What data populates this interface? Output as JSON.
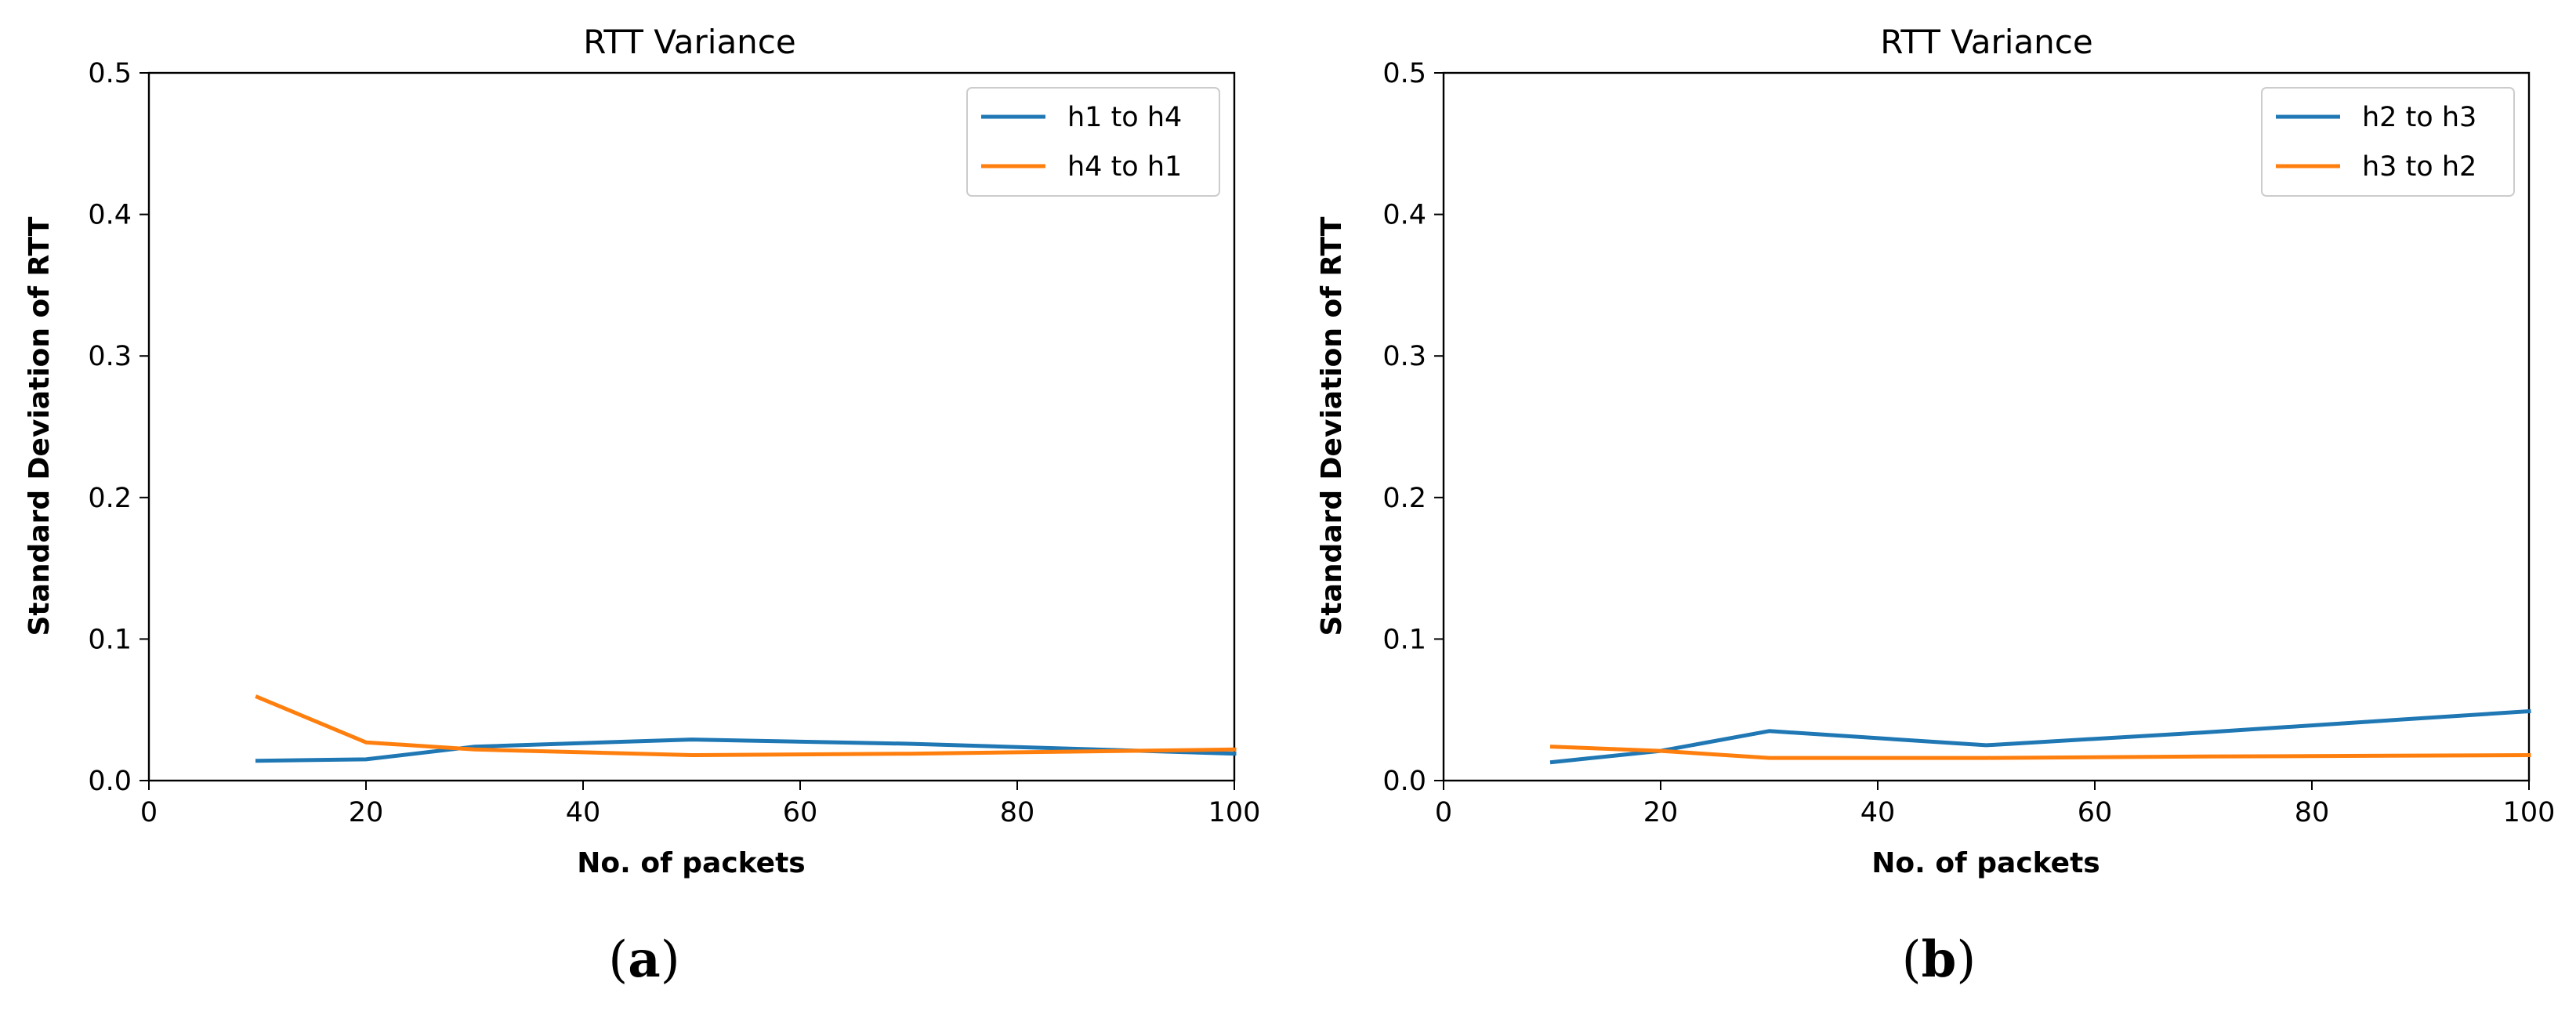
{
  "chart_data": [
    {
      "type": "line",
      "title": "RTT Variance",
      "xlabel": "No. of packets",
      "ylabel": "Standard Deviation of RTT",
      "xlim": [
        0,
        100
      ],
      "ylim": [
        0,
        0.5
      ],
      "xticks": [
        "0",
        "20",
        "40",
        "60",
        "80",
        "100"
      ],
      "yticks": [
        "0.0",
        "0.1",
        "0.2",
        "0.3",
        "0.4",
        "0.5"
      ],
      "legend_position": "top-right",
      "grid": false,
      "caption": {
        "open": "(",
        "letter": "a",
        "close": ")"
      },
      "series": [
        {
          "name": "h1 to h4",
          "color": "#1f77b4",
          "x": [
            10,
            20,
            30,
            50,
            70,
            100
          ],
          "y": [
            0.014,
            0.015,
            0.024,
            0.029,
            0.026,
            0.019
          ]
        },
        {
          "name": "h4 to h1",
          "color": "#ff7f0e",
          "x": [
            10,
            20,
            30,
            50,
            70,
            100
          ],
          "y": [
            0.059,
            0.027,
            0.022,
            0.018,
            0.019,
            0.022
          ]
        }
      ]
    },
    {
      "type": "line",
      "title": "RTT Variance",
      "xlabel": "No. of packets",
      "ylabel": "Standard Deviation of RTT",
      "xlim": [
        0,
        100
      ],
      "ylim": [
        0,
        0.5
      ],
      "xticks": [
        "0",
        "20",
        "40",
        "60",
        "80",
        "100"
      ],
      "yticks": [
        "0.0",
        "0.1",
        "0.2",
        "0.3",
        "0.4",
        "0.5"
      ],
      "legend_position": "top-right",
      "grid": false,
      "caption": {
        "open": "(",
        "letter": "b",
        "close": ")"
      },
      "series": [
        {
          "name": "h2 to h3",
          "color": "#1f77b4",
          "x": [
            10,
            20,
            30,
            50,
            70,
            100
          ],
          "y": [
            0.013,
            0.021,
            0.035,
            0.025,
            0.034,
            0.049
          ]
        },
        {
          "name": "h3 to h2",
          "color": "#ff7f0e",
          "x": [
            10,
            20,
            30,
            50,
            70,
            100
          ],
          "y": [
            0.024,
            0.021,
            0.016,
            0.016,
            0.017,
            0.018
          ]
        }
      ]
    }
  ]
}
